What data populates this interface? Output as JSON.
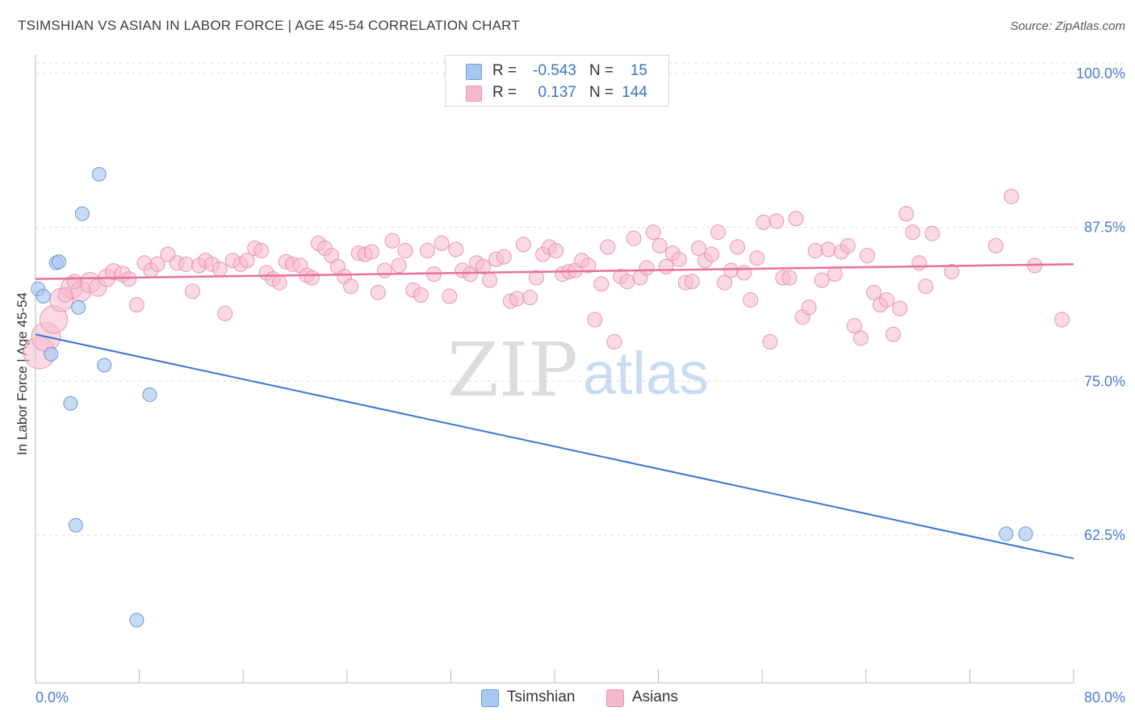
{
  "header": {
    "title": "TSIMSHIAN VS ASIAN IN LABOR FORCE | AGE 45-54 CORRELATION CHART",
    "source": "Source: ZipAtlas.com"
  },
  "watermark": {
    "zip": "ZIP",
    "atlas": "atlas"
  },
  "legend_top": {
    "rows": [
      {
        "r_label": "R =",
        "r_value": "-0.543",
        "n_label": "N =",
        "n_value": "15",
        "color": "#a9c8f0"
      },
      {
        "r_label": "R =",
        "r_value": "0.137",
        "n_label": "N =",
        "n_value": "144",
        "color": "#f6b9cc"
      }
    ]
  },
  "legend_bottom": {
    "items": [
      {
        "label": "Tsimshian",
        "color": "#a9c8f0"
      },
      {
        "label": "Asians",
        "color": "#f6b9cc"
      }
    ]
  },
  "colors": {
    "blue_fill": "#a9c8f0",
    "blue_stroke": "#6a9ad8",
    "blue_line": "#3a74d4",
    "pink_fill": "#f6b9cc",
    "pink_stroke": "#e896b0",
    "pink_line": "#e7719a",
    "tick_label": "#4a7dd0",
    "grid": "#dddddd"
  },
  "chart_data": {
    "type": "scatter",
    "title": "TSIMSHIAN VS ASIAN IN LABOR FORCE | AGE 45-54 CORRELATION CHART",
    "xlabel": "",
    "ylabel": "In Labor Force | Age 45-54",
    "xlim": [
      0,
      80
    ],
    "ylim": [
      50.5,
      101.5
    ],
    "x_tick_labels": [
      {
        "value": 0,
        "label": "0.0%"
      },
      {
        "value": 80,
        "label": "80.0%"
      }
    ],
    "y_tick_labels": [
      {
        "value": 100,
        "label": "100.0%"
      },
      {
        "value": 87.5,
        "label": "87.5%"
      },
      {
        "value": 75,
        "label": "75.0%"
      },
      {
        "value": 62.5,
        "label": "62.5%"
      }
    ],
    "x_minor_ticks": [
      0,
      8,
      16,
      24,
      32,
      40,
      48,
      56,
      64,
      72,
      80
    ],
    "grid": "horizontal dashed",
    "legend_placement": "top-center and bottom",
    "series": [
      {
        "name": "Tsimshian",
        "color": "#a9c8f0",
        "trend": {
          "x": [
            0,
            80
          ],
          "y": [
            78.8,
            60.6
          ]
        },
        "points": [
          [
            4.9,
            91.8
          ],
          [
            3.6,
            88.6
          ],
          [
            1.6,
            84.6
          ],
          [
            1.8,
            84.7
          ],
          [
            0.2,
            82.5
          ],
          [
            0.6,
            81.9
          ],
          [
            3.3,
            81.0
          ],
          [
            1.2,
            77.2
          ],
          [
            5.3,
            76.3
          ],
          [
            2.7,
            73.2
          ],
          [
            8.8,
            73.9
          ],
          [
            3.1,
            63.3
          ],
          [
            7.8,
            55.6
          ],
          [
            74.8,
            62.6
          ],
          [
            76.3,
            62.6
          ]
        ]
      },
      {
        "name": "Asians",
        "color": "#f6b9cc",
        "trend": {
          "x": [
            0,
            80
          ],
          "y": [
            83.3,
            84.5
          ]
        },
        "points": [
          [
            0.3,
            77.3,
            2.2
          ],
          [
            0.8,
            78.6,
            2.0
          ],
          [
            1.4,
            80.0,
            1.9
          ],
          [
            2.0,
            81.6,
            1.6
          ],
          [
            2.8,
            82.6,
            1.5
          ],
          [
            3.5,
            82.3,
            1.4
          ],
          [
            4.2,
            83.0,
            1.4
          ],
          [
            4.8,
            82.6,
            1.2
          ],
          [
            5.5,
            83.4,
            1.2
          ],
          [
            6.0,
            83.9,
            1.1
          ],
          [
            6.7,
            83.7,
            1.1
          ],
          [
            7.2,
            83.3,
            1.0
          ],
          [
            7.8,
            81.2,
            1.0
          ],
          [
            8.4,
            84.6,
            1.0
          ],
          [
            8.9,
            84.0,
            1.0
          ],
          [
            9.4,
            84.5,
            1.0
          ],
          [
            10.2,
            85.3,
            1.0
          ],
          [
            10.9,
            84.6,
            1.0
          ],
          [
            11.6,
            84.5,
            1.0
          ],
          [
            12.1,
            82.3,
            1.0
          ],
          [
            12.6,
            84.4,
            1.0
          ],
          [
            13.1,
            84.8,
            1.0
          ],
          [
            13.6,
            84.5,
            1.0
          ],
          [
            14.2,
            84.1,
            1.0
          ],
          [
            14.6,
            80.5,
            1.0
          ],
          [
            15.2,
            84.8,
            1.0
          ],
          [
            15.8,
            84.5,
            1.0
          ],
          [
            16.3,
            84.8,
            1.0
          ],
          [
            16.9,
            85.8,
            1.0
          ],
          [
            17.4,
            85.6,
            1.0
          ],
          [
            17.8,
            83.8,
            1.0
          ],
          [
            18.3,
            83.3,
            1.0
          ],
          [
            18.8,
            83.0,
            1.0
          ],
          [
            19.3,
            84.7,
            1.0
          ],
          [
            19.8,
            84.5,
            1.0
          ],
          [
            20.4,
            84.4,
            1.0
          ],
          [
            20.9,
            83.6,
            1.0
          ],
          [
            21.3,
            83.4,
            1.0
          ],
          [
            21.8,
            86.2,
            1.0
          ],
          [
            22.3,
            85.8,
            1.0
          ],
          [
            22.8,
            85.2,
            1.0
          ],
          [
            23.3,
            84.3,
            1.0
          ],
          [
            23.8,
            83.5,
            1.0
          ],
          [
            24.3,
            82.7,
            1.0
          ],
          [
            24.9,
            85.4,
            1.0
          ],
          [
            25.4,
            85.3,
            1.0
          ],
          [
            25.9,
            85.5,
            1.0
          ],
          [
            26.4,
            82.2,
            1.0
          ],
          [
            26.9,
            84.0,
            1.0
          ],
          [
            27.5,
            86.4,
            1.0
          ],
          [
            28.0,
            84.4,
            1.0
          ],
          [
            28.5,
            85.6,
            1.0
          ],
          [
            29.1,
            82.4,
            1.0
          ],
          [
            29.7,
            82.0,
            1.0
          ],
          [
            30.2,
            85.6,
            1.0
          ],
          [
            30.7,
            83.7,
            1.0
          ],
          [
            31.3,
            86.2,
            1.0
          ],
          [
            31.9,
            81.9,
            1.0
          ],
          [
            32.4,
            85.7,
            1.0
          ],
          [
            32.9,
            84.0,
            1.0
          ],
          [
            33.5,
            83.7,
            1.0
          ],
          [
            34.0,
            84.6,
            1.0
          ],
          [
            34.5,
            84.3,
            1.0
          ],
          [
            35.0,
            83.2,
            1.0
          ],
          [
            35.5,
            84.9,
            1.0
          ],
          [
            36.1,
            85.1,
            1.0
          ],
          [
            36.6,
            81.5,
            1.0
          ],
          [
            37.1,
            81.7,
            1.0
          ],
          [
            37.6,
            86.1,
            1.0
          ],
          [
            38.1,
            81.8,
            1.0
          ],
          [
            38.6,
            83.4,
            1.0
          ],
          [
            39.1,
            85.3,
            1.0
          ],
          [
            39.6,
            85.9,
            1.0
          ],
          [
            40.1,
            85.6,
            1.0
          ],
          [
            40.6,
            83.7,
            1.0
          ],
          [
            41.1,
            83.9,
            1.0
          ],
          [
            41.6,
            84.0,
            1.0
          ],
          [
            42.1,
            84.8,
            1.0
          ],
          [
            42.6,
            84.4,
            1.0
          ],
          [
            43.1,
            80.0,
            1.0
          ],
          [
            43.6,
            82.9,
            1.0
          ],
          [
            44.1,
            85.9,
            1.0
          ],
          [
            44.6,
            78.2,
            1.0
          ],
          [
            45.1,
            83.5,
            1.0
          ],
          [
            45.6,
            83.1,
            1.0
          ],
          [
            46.1,
            86.6,
            1.0
          ],
          [
            46.6,
            83.4,
            1.0
          ],
          [
            47.1,
            84.2,
            1.0
          ],
          [
            47.6,
            87.1,
            1.0
          ],
          [
            48.1,
            86.0,
            1.0
          ],
          [
            48.6,
            84.3,
            1.0
          ],
          [
            49.1,
            85.4,
            1.0
          ],
          [
            49.6,
            84.9,
            1.0
          ],
          [
            50.1,
            83.0,
            1.0
          ],
          [
            50.6,
            83.1,
            1.0
          ],
          [
            51.1,
            85.8,
            1.0
          ],
          [
            51.6,
            84.8,
            1.0
          ],
          [
            52.1,
            85.3,
            1.0
          ],
          [
            52.6,
            87.1,
            1.0
          ],
          [
            53.1,
            83.0,
            1.0
          ],
          [
            53.6,
            84.0,
            1.0
          ],
          [
            54.1,
            85.9,
            1.0
          ],
          [
            54.6,
            83.8,
            1.0
          ],
          [
            55.1,
            81.6,
            1.0
          ],
          [
            55.6,
            85.0,
            1.0
          ],
          [
            56.1,
            87.9,
            1.0
          ],
          [
            56.6,
            78.2,
            1.0
          ],
          [
            57.1,
            88.0,
            1.0
          ],
          [
            57.6,
            83.4,
            1.0
          ],
          [
            58.1,
            83.4,
            1.0
          ],
          [
            58.6,
            88.2,
            1.0
          ],
          [
            59.1,
            80.2,
            1.0
          ],
          [
            59.6,
            81.0,
            1.0
          ],
          [
            60.1,
            85.6,
            1.0
          ],
          [
            60.6,
            83.2,
            1.0
          ],
          [
            61.1,
            85.7,
            1.0
          ],
          [
            61.6,
            83.7,
            1.0
          ],
          [
            62.1,
            85.5,
            1.0
          ],
          [
            62.6,
            86.0,
            1.0
          ],
          [
            63.1,
            79.5,
            1.0
          ],
          [
            63.6,
            78.5,
            1.0
          ],
          [
            64.1,
            85.2,
            1.0
          ],
          [
            64.6,
            82.2,
            1.0
          ],
          [
            65.1,
            81.2,
            1.0
          ],
          [
            65.6,
            81.6,
            1.0
          ],
          [
            66.1,
            78.8,
            1.0
          ],
          [
            66.6,
            80.9,
            1.0
          ],
          [
            67.1,
            88.6,
            1.0
          ],
          [
            67.6,
            87.1,
            1.0
          ],
          [
            68.1,
            84.6,
            1.0
          ],
          [
            68.6,
            82.7,
            1.0
          ],
          [
            69.1,
            87.0,
            1.0
          ],
          [
            70.6,
            83.9,
            1.0
          ],
          [
            74.0,
            86.0,
            1.0
          ],
          [
            75.2,
            90.0,
            1.0
          ],
          [
            77.0,
            84.4,
            1.0
          ],
          [
            79.1,
            80.0,
            1.0
          ],
          [
            2.3,
            82.0,
            1.0
          ],
          [
            3.0,
            83.1,
            1.0
          ]
        ]
      }
    ]
  }
}
